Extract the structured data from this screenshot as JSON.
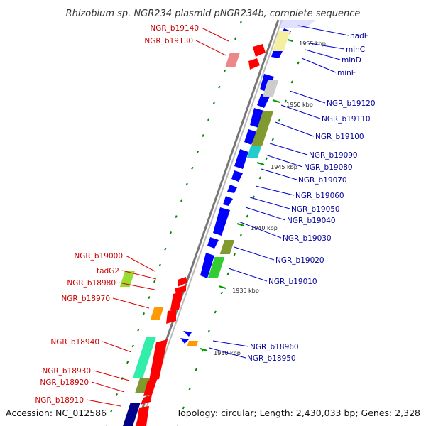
{
  "title": "Rhizobium sp. NGR234 plasmid pNGR234b, complete sequence",
  "accession": "Accession: NC_012586",
  "topology": "Topology: circular; Length: 2,430,033 bp; Genes: 2,328",
  "colors": {
    "plus_strand": "#ff0000",
    "minus_strand": "#0000ff",
    "plus_label": "#cc0000",
    "minus_label": "#000099",
    "backbone": "#888888",
    "dots": "#009900"
  },
  "ticks": [
    {
      "label": "1955 kbp",
      "pos": 1955
    },
    {
      "label": "1950 kbp",
      "pos": 1950
    },
    {
      "label": "1945 kbp",
      "pos": 1945
    },
    {
      "label": "1940 kbp",
      "pos": 1940
    },
    {
      "label": "1935 kbp",
      "pos": 1935
    },
    {
      "label": "1930 kbp",
      "pos": 1930
    }
  ],
  "left_genes": [
    {
      "label": "NGR_b19140"
    },
    {
      "label": "NGR_b19130"
    },
    {
      "label": "NGR_b19000"
    },
    {
      "label": "tadG2"
    },
    {
      "label": "NGR_b18980"
    },
    {
      "label": "NGR_b18970"
    },
    {
      "label": "NGR_b18940"
    },
    {
      "label": "NGR_b18930"
    },
    {
      "label": "NGR_b18920"
    },
    {
      "label": "NGR_b18910"
    }
  ],
  "right_genes": [
    {
      "label": "nadE"
    },
    {
      "label": "minC"
    },
    {
      "label": "minD"
    },
    {
      "label": "minE"
    },
    {
      "label": "NGR_b19120"
    },
    {
      "label": "NGR_b19110"
    },
    {
      "label": "NGR_b19100"
    },
    {
      "label": "NGR_b19090"
    },
    {
      "label": "NGR_b19080"
    },
    {
      "label": "NGR_b19070"
    },
    {
      "label": "NGR_b19060"
    },
    {
      "label": "NGR_b19050"
    },
    {
      "label": "NGR_b19040"
    },
    {
      "label": "NGR_b19030"
    },
    {
      "label": "NGR_b19020"
    },
    {
      "label": "NGR_b19010"
    },
    {
      "label": "NGR_b18960"
    },
    {
      "label": "NGR_b18950"
    }
  ]
}
